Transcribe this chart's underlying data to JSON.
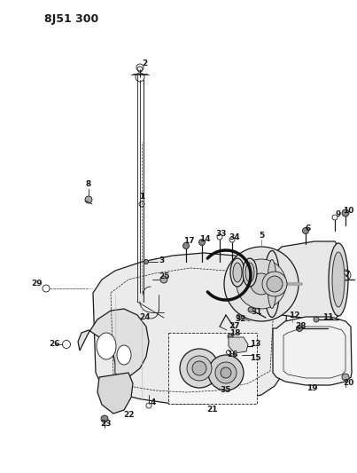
{
  "title": "8J51 300",
  "bg_color": "#ffffff",
  "line_color": "#1a1a1a",
  "title_fontsize": 9,
  "label_fontsize": 6.5,
  "fig_width": 4.03,
  "fig_height": 5.33,
  "dpi": 100
}
